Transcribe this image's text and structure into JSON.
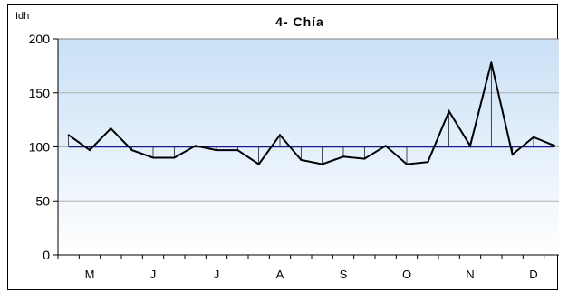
{
  "chart_data": {
    "type": "line",
    "title": "4- Chía",
    "ylabel": "Idh",
    "xlabel": "",
    "ylim": [
      0,
      200
    ],
    "yticks": [
      0,
      50,
      100,
      150,
      200
    ],
    "baseline": 100,
    "month_labels": [
      "M",
      "J",
      "J",
      "A",
      "S",
      "O",
      "N",
      "D"
    ],
    "month_label_positions": [
      1,
      4,
      7,
      10,
      13,
      16,
      19,
      22
    ],
    "x": [
      0,
      1,
      2,
      3,
      4,
      5,
      6,
      7,
      8,
      9,
      10,
      11,
      12,
      13,
      14,
      15,
      16,
      17,
      18,
      19,
      20,
      21,
      22,
      23
    ],
    "values": [
      111,
      97,
      117,
      97,
      90,
      90,
      101,
      97,
      97,
      84,
      111,
      88,
      84,
      91,
      89,
      101,
      84,
      86,
      133,
      101,
      178,
      93,
      109,
      101
    ],
    "colors": {
      "series": "#000000",
      "baseline": "#1a1a8a",
      "plot_top": "#c9e0f6",
      "plot_bottom": "#ffffff",
      "gridline": "#b0b0b0"
    },
    "grid": true,
    "legend": "none"
  }
}
